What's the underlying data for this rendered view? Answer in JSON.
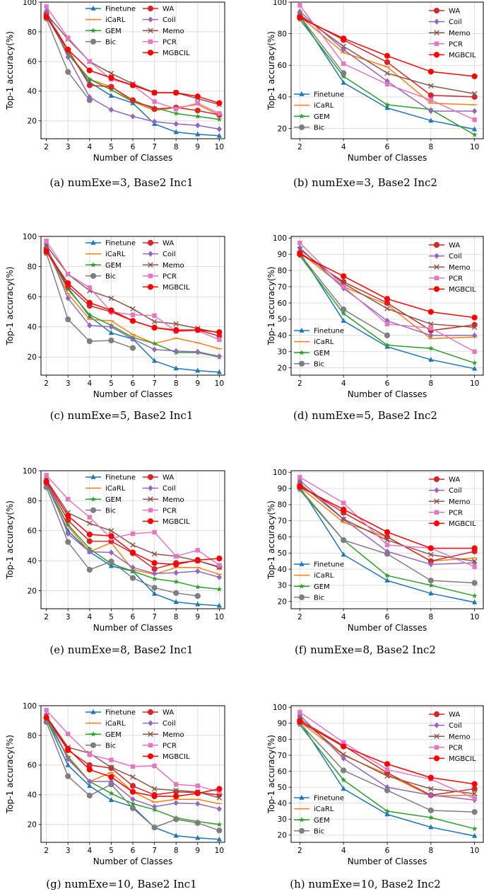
{
  "figure": {
    "series_styles": [
      {
        "name": "Finetune",
        "color": "#1f77b4",
        "marker": "triangle"
      },
      {
        "name": "iCaRL",
        "color": "#ff7f0e",
        "marker": "line"
      },
      {
        "name": "GEM",
        "color": "#2ca02c",
        "marker": "star"
      },
      {
        "name": "Bic",
        "color": "#7f7f7f",
        "marker": "circle"
      },
      {
        "name": "WA",
        "color": "#d62728",
        "marker": "circle"
      },
      {
        "name": "Coil",
        "color": "#9467bd",
        "marker": "diamond"
      },
      {
        "name": "Memo",
        "color": "#8c564b",
        "marker": "x"
      },
      {
        "name": "PCR",
        "color": "#e377c2",
        "marker": "square"
      },
      {
        "name": "MGBCIL",
        "color": "#ff0000",
        "marker": "circle"
      }
    ]
  },
  "chart_data": [
    {
      "type": "line",
      "id": "a",
      "caption": "(a)  numExe=3, Base2 Inc1",
      "xlabel": "Number of Classes",
      "ylabel": "Top-1 accuracy(%)",
      "x": [
        2,
        3,
        4,
        5,
        6,
        7,
        8,
        9,
        10
      ],
      "xlim": [
        1.75,
        10.25
      ],
      "ylim": [
        8,
        100
      ],
      "yticks": [
        20,
        40,
        60,
        80,
        100
      ],
      "legend": "top-center-two-columns",
      "series": [
        {
          "name": "Finetune",
          "values": [
            91,
            66,
            46,
            37,
            32,
            18,
            12.5,
            11,
            10
          ]
        },
        {
          "name": "iCaRL",
          "values": [
            91,
            66,
            48,
            43,
            33,
            27,
            29,
            31,
            24
          ]
        },
        {
          "name": "GEM",
          "values": [
            91,
            65,
            48,
            41,
            33,
            29,
            25,
            23,
            21
          ]
        },
        {
          "name": "Bic",
          "values": [
            89,
            53,
            34,
            null,
            null,
            null,
            null,
            null,
            null
          ]
        },
        {
          "name": "WA",
          "values": [
            92,
            68,
            44,
            43,
            34,
            28,
            29,
            27,
            24
          ]
        },
        {
          "name": "Coil",
          "values": [
            94,
            63,
            36,
            27.5,
            23,
            19.5,
            18,
            17,
            14.5
          ]
        },
        {
          "name": "Memo",
          "values": [
            92,
            75,
            60,
            52,
            45,
            39,
            39,
            35,
            31
          ]
        },
        {
          "name": "PCR",
          "values": [
            97,
            76,
            60,
            48,
            44,
            33,
            28,
            32,
            25
          ]
        },
        {
          "name": "MGBCIL",
          "values": [
            90,
            68,
            54,
            49,
            44,
            39,
            39,
            36.5,
            32
          ]
        }
      ]
    },
    {
      "type": "line",
      "id": "b",
      "caption": "(b)  numExe=3, Base2 Inc2",
      "xlabel": "Number of Classes",
      "ylabel": "Top-1 accuracy(%)",
      "x": [
        2,
        4,
        6,
        8,
        10
      ],
      "xlim": [
        1.6,
        10.4
      ],
      "ylim": [
        13.5,
        100
      ],
      "yticks": [
        20,
        40,
        60,
        80,
        100
      ],
      "legend": "split",
      "series": [
        {
          "name": "Finetune",
          "values": [
            91,
            49,
            33,
            25,
            19.5
          ]
        },
        {
          "name": "iCaRL",
          "values": [
            91,
            68,
            59,
            36,
            35
          ]
        },
        {
          "name": "GEM",
          "values": [
            89,
            53,
            35,
            32,
            16
          ]
        },
        {
          "name": "Bic",
          "values": [
            91,
            55,
            null,
            null,
            null
          ]
        },
        {
          "name": "WA",
          "values": [
            91,
            76,
            62,
            41,
            40
          ]
        },
        {
          "name": "Coil",
          "values": [
            94,
            70,
            50,
            31,
            31
          ]
        },
        {
          "name": "Memo",
          "values": [
            92,
            72,
            55,
            47,
            42
          ]
        },
        {
          "name": "PCR",
          "values": [
            98,
            61,
            48,
            38,
            25.5
          ]
        },
        {
          "name": "MGBCIL",
          "values": [
            90,
            77,
            66,
            56,
            53
          ]
        }
      ]
    },
    {
      "type": "line",
      "id": "c",
      "caption": "(c)  numExe=5, Base2 Inc1",
      "xlabel": "Number of Classes",
      "ylabel": "Top-1 accuracy(%)",
      "x": [
        2,
        3,
        4,
        5,
        6,
        7,
        8,
        9,
        10
      ],
      "xlim": [
        1.75,
        10.25
      ],
      "ylim": [
        8,
        100
      ],
      "yticks": [
        20,
        40,
        60,
        80,
        100
      ],
      "legend": "top-center-two-columns",
      "series": [
        {
          "name": "Finetune",
          "values": [
            91,
            66,
            47,
            36,
            32,
            17.5,
            12.5,
            11,
            10
          ]
        },
        {
          "name": "iCaRL",
          "values": [
            91,
            62,
            45,
            44,
            35,
            29,
            32.5,
            29.5,
            25.5
          ]
        },
        {
          "name": "GEM",
          "values": [
            91,
            65,
            48,
            41,
            33,
            29,
            23,
            23,
            20
          ]
        },
        {
          "name": "Bic",
          "values": [
            89,
            45,
            30.5,
            31,
            26,
            null,
            null,
            null,
            null
          ]
        },
        {
          "name": "WA",
          "values": [
            92,
            67,
            54,
            50,
            44,
            39.5,
            38,
            38,
            34
          ]
        },
        {
          "name": "Coil",
          "values": [
            94,
            59,
            41,
            40,
            32,
            25,
            24,
            23.5,
            20.5
          ]
        },
        {
          "name": "Memo",
          "values": [
            94,
            75,
            64,
            59,
            52,
            43.5,
            42,
            39,
            36
          ]
        },
        {
          "name": "PCR",
          "values": [
            97,
            75,
            66,
            50,
            48,
            47.5,
            37,
            37.5,
            31.5
          ]
        },
        {
          "name": "MGBCIL",
          "values": [
            90,
            69,
            56,
            51,
            44,
            39.5,
            37.5,
            38,
            36.5
          ]
        }
      ]
    },
    {
      "type": "line",
      "id": "d",
      "caption": "(d)  numExe=5, Base2 Inc2",
      "xlabel": "Number of Classes",
      "ylabel": "Top-1 accuracy(%)",
      "x": [
        2,
        4,
        6,
        8,
        10
      ],
      "xlim": [
        1.6,
        10.4
      ],
      "ylim": [
        15.5,
        101
      ],
      "yticks": [
        20,
        30,
        40,
        50,
        60,
        70,
        80,
        90,
        100
      ],
      "legend": "split",
      "series": [
        {
          "name": "Finetune",
          "values": [
            91,
            49,
            33,
            25,
            19.5
          ]
        },
        {
          "name": "iCaRL",
          "values": [
            91,
            70,
            59,
            38,
            39
          ]
        },
        {
          "name": "GEM",
          "values": [
            89,
            53.5,
            34,
            32,
            23
          ]
        },
        {
          "name": "Bic",
          "values": [
            90,
            56,
            40,
            null,
            null
          ]
        },
        {
          "name": "WA",
          "values": [
            91,
            73,
            60,
            43,
            46.5
          ]
        },
        {
          "name": "Coil",
          "values": [
            94,
            69,
            49,
            40,
            40
          ]
        },
        {
          "name": "Memo",
          "values": [
            93,
            72,
            56.5,
            47,
            45
          ]
        },
        {
          "name": "PCR",
          "values": [
            97,
            70,
            47,
            44.5,
            30
          ]
        },
        {
          "name": "MGBCIL",
          "values": [
            90,
            76.5,
            62.5,
            54.5,
            51
          ]
        }
      ]
    },
    {
      "type": "line",
      "id": "e",
      "caption": "(e)  numExe=8, Base2 Inc1",
      "xlabel": "Number of Classes",
      "ylabel": "Top-1 accuracy(%)",
      "x": [
        2,
        3,
        4,
        5,
        6,
        7,
        8,
        9,
        10
      ],
      "xlim": [
        1.75,
        10.25
      ],
      "ylim": [
        8,
        100
      ],
      "yticks": [
        20,
        40,
        60,
        80,
        100
      ],
      "legend": "top-center-two-columns",
      "series": [
        {
          "name": "Finetune",
          "values": [
            91,
            60,
            46,
            36.5,
            33,
            18,
            12.5,
            11,
            10
          ]
        },
        {
          "name": "iCaRL",
          "values": [
            91,
            63,
            46,
            52,
            34,
            31,
            35.5,
            35.5,
            31
          ]
        },
        {
          "name": "GEM",
          "values": [
            91,
            64,
            48,
            38,
            33,
            28,
            26,
            22.5,
            21
          ]
        },
        {
          "name": "Bic",
          "values": [
            89,
            52.5,
            34,
            39.5,
            28.5,
            22,
            18.5,
            16.5,
            null
          ]
        },
        {
          "name": "WA",
          "values": [
            92,
            67,
            53,
            53,
            45,
            34.5,
            38.5,
            40,
            36
          ]
        },
        {
          "name": "Coil",
          "values": [
            94,
            58,
            46,
            45.5,
            35.5,
            31.5,
            32,
            33,
            29
          ]
        },
        {
          "name": "Memo",
          "values": [
            94,
            72,
            65,
            60,
            50.5,
            44.5,
            43,
            40,
            35.5
          ]
        },
        {
          "name": "PCR",
          "values": [
            97,
            81,
            69,
            55,
            58,
            59,
            43,
            47,
            37
          ]
        },
        {
          "name": "MGBCIL",
          "values": [
            93,
            70,
            57.5,
            56.5,
            45.5,
            38.5,
            37.5,
            40.5,
            41.5
          ]
        }
      ]
    },
    {
      "type": "line",
      "id": "f",
      "caption": "(f)  numExe=8, Base2 Inc2",
      "xlabel": "Number of Classes",
      "ylabel": "Top-1 accuracy(%)",
      "x": [
        2,
        4,
        6,
        8,
        10
      ],
      "xlim": [
        1.6,
        10.4
      ],
      "ylim": [
        15.5,
        101
      ],
      "yticks": [
        20,
        30,
        40,
        50,
        60,
        70,
        80,
        90,
        100
      ],
      "legend": "split",
      "series": [
        {
          "name": "Finetune",
          "values": [
            91,
            49,
            33,
            25,
            19.5
          ]
        },
        {
          "name": "iCaRL",
          "values": [
            91,
            69,
            60,
            45,
            47
          ]
        },
        {
          "name": "GEM",
          "values": [
            89,
            58,
            36,
            30,
            23.5
          ]
        },
        {
          "name": "Bic",
          "values": [
            90,
            58,
            49.5,
            33,
            31.5
          ]
        },
        {
          "name": "WA",
          "values": [
            92,
            75,
            60,
            45,
            51
          ]
        },
        {
          "name": "Coil",
          "values": [
            95,
            71,
            51,
            43,
            44
          ]
        },
        {
          "name": "Memo",
          "values": [
            93,
            71,
            58,
            49,
            45
          ]
        },
        {
          "name": "PCR",
          "values": [
            97,
            81,
            55,
            53,
            41.5
          ]
        },
        {
          "name": "MGBCIL",
          "values": [
            91,
            77,
            63,
            53,
            53
          ]
        }
      ]
    },
    {
      "type": "line",
      "id": "g",
      "caption": "(g)  numExe=10, Base2 Inc1",
      "xlabel": "Number of Classes",
      "ylabel": "Top-1 accuracy(%)",
      "x": [
        2,
        3,
        4,
        5,
        6,
        7,
        8,
        9,
        10
      ],
      "xlim": [
        1.75,
        10.25
      ],
      "ylim": [
        8,
        100
      ],
      "yticks": [
        20,
        40,
        60,
        80,
        100
      ],
      "legend": "top-center-two-columns",
      "series": [
        {
          "name": "Finetune",
          "values": [
            91,
            60,
            46,
            36.5,
            32,
            18,
            12.5,
            11,
            10
          ]
        },
        {
          "name": "iCaRL",
          "values": [
            91,
            66,
            49,
            55,
            42,
            35,
            37,
            37,
            34
          ]
        },
        {
          "name": "GEM",
          "values": [
            91,
            65,
            49,
            41,
            34,
            30,
            24.5,
            22,
            20
          ]
        },
        {
          "name": "Bic",
          "values": [
            89,
            52.5,
            39.5,
            47,
            31,
            18,
            23.5,
            21,
            16
          ]
        },
        {
          "name": "WA",
          "values": [
            92,
            70,
            60,
            58,
            46,
            40,
            42,
            41.5,
            40
          ]
        },
        {
          "name": "Coil",
          "values": [
            94,
            64,
            49,
            49,
            37,
            32,
            34.5,
            34,
            30.5
          ]
        },
        {
          "name": "Memo",
          "values": [
            93,
            72,
            68,
            58.5,
            52,
            44,
            43,
            42,
            38
          ]
        },
        {
          "name": "PCR",
          "values": [
            97,
            81,
            67,
            63.5,
            59,
            59.5,
            47,
            46,
            42
          ]
        },
        {
          "name": "MGBCIL",
          "values": [
            92,
            71,
            57,
            52,
            42,
            39,
            39,
            41,
            44
          ]
        }
      ]
    },
    {
      "type": "line",
      "id": "h",
      "caption": "(h)  numExe=10, Base2 Inc2",
      "xlabel": "Number of Classes",
      "ylabel": "Top-1 accuracy(%)",
      "x": [
        2,
        4,
        6,
        8,
        10
      ],
      "xlim": [
        1.6,
        10.4
      ],
      "ylim": [
        15.5,
        101
      ],
      "yticks": [
        20,
        30,
        40,
        50,
        60,
        70,
        80,
        90,
        100
      ],
      "legend": "split",
      "series": [
        {
          "name": "Finetune",
          "values": [
            91,
            49,
            33,
            25,
            19.5
          ]
        },
        {
          "name": "iCaRL",
          "values": [
            91,
            70,
            58,
            44.5,
            45
          ]
        },
        {
          "name": "GEM",
          "values": [
            89,
            54.5,
            35,
            31,
            24
          ]
        },
        {
          "name": "Bic",
          "values": [
            90,
            60.5,
            48,
            35.5,
            34.5
          ]
        },
        {
          "name": "WA",
          "values": [
            92,
            76,
            59,
            45,
            49
          ]
        },
        {
          "name": "Coil",
          "values": [
            95,
            68,
            50,
            45,
            42
          ]
        },
        {
          "name": "Memo",
          "values": [
            93,
            70.5,
            57,
            49,
            46
          ]
        },
        {
          "name": "PCR",
          "values": [
            97,
            78,
            61,
            55,
            43
          ]
        },
        {
          "name": "MGBCIL",
          "values": [
            91,
            75.5,
            64.5,
            56,
            52
          ]
        }
      ]
    }
  ]
}
